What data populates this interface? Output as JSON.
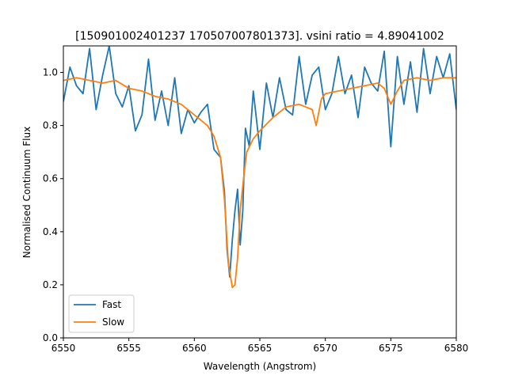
{
  "chart_data": {
    "type": "line",
    "title": "[150901002401237 170507007801373]. vsini ratio = 4.89041002",
    "xlabel": "Wavelength (Angstrom)",
    "ylabel": "Normalised Continuum Flux",
    "xlim": [
      6550,
      6580
    ],
    "ylim": [
      0.0,
      1.1
    ],
    "xticks": [
      6550,
      6555,
      6560,
      6565,
      6570,
      6575,
      6580
    ],
    "xtick_labels": [
      "6550",
      "6555",
      "6560",
      "6565",
      "6570",
      "6575",
      "6580"
    ],
    "yticks": [
      0.0,
      0.2,
      0.4,
      0.6,
      0.8,
      1.0
    ],
    "ytick_labels": [
      "0.0",
      "0.2",
      "0.4",
      "0.6",
      "0.8",
      "1.0"
    ],
    "grid": false,
    "legend_position": "lower-left",
    "series": [
      {
        "name": "Fast",
        "color": "#1f77b4",
        "x": [
          6550.0,
          6550.5,
          6551.0,
          6551.5,
          6552.0,
          6552.5,
          6553.0,
          6553.5,
          6554.0,
          6554.5,
          6555.0,
          6555.5,
          6556.0,
          6556.5,
          6557.0,
          6557.5,
          6558.0,
          6558.5,
          6559.0,
          6559.5,
          6560.0,
          6560.5,
          6561.0,
          6561.5,
          6562.0,
          6562.3,
          6562.5,
          6562.7,
          6562.9,
          6563.1,
          6563.3,
          6563.5,
          6563.7,
          6563.9,
          6564.2,
          6564.5,
          6565.0,
          6565.5,
          6566.0,
          6566.5,
          6567.0,
          6567.5,
          6568.0,
          6568.5,
          6569.0,
          6569.5,
          6570.0,
          6570.5,
          6571.0,
          6571.5,
          6572.0,
          6572.5,
          6573.0,
          6573.5,
          6574.0,
          6574.5,
          6575.0,
          6575.5,
          6576.0,
          6576.5,
          6577.0,
          6577.5,
          6578.0,
          6578.5,
          6579.0,
          6579.5,
          6580.0
        ],
        "y": [
          0.89,
          1.02,
          0.95,
          0.92,
          1.09,
          0.86,
          0.99,
          1.1,
          0.92,
          0.87,
          0.95,
          0.78,
          0.84,
          1.05,
          0.82,
          0.93,
          0.8,
          0.98,
          0.77,
          0.86,
          0.81,
          0.85,
          0.88,
          0.71,
          0.68,
          0.55,
          0.33,
          0.23,
          0.37,
          0.48,
          0.56,
          0.35,
          0.48,
          0.79,
          0.72,
          0.93,
          0.71,
          0.96,
          0.83,
          0.98,
          0.86,
          0.84,
          1.06,
          0.88,
          0.99,
          1.02,
          0.86,
          0.92,
          1.06,
          0.92,
          0.99,
          0.83,
          1.02,
          0.96,
          0.93,
          1.08,
          0.72,
          1.06,
          0.88,
          1.04,
          0.85,
          1.09,
          0.92,
          1.06,
          0.98,
          1.07,
          0.86
        ]
      },
      {
        "name": "Slow",
        "color": "#ff7f0e",
        "x": [
          6550.0,
          6551.0,
          6552.0,
          6553.0,
          6554.0,
          6555.0,
          6556.0,
          6557.0,
          6558.0,
          6559.0,
          6560.0,
          6561.0,
          6561.5,
          6562.0,
          6562.3,
          6562.6,
          6562.9,
          6563.1,
          6563.3,
          6563.5,
          6563.8,
          6564.0,
          6564.5,
          6565.0,
          6566.0,
          6567.0,
          6568.0,
          6569.0,
          6569.3,
          6569.7,
          6570.0,
          6571.0,
          6572.0,
          6573.0,
          6574.0,
          6574.5,
          6575.0,
          6575.5,
          6576.0,
          6577.0,
          6578.0,
          6579.0,
          6580.0
        ],
        "y": [
          0.97,
          0.98,
          0.97,
          0.96,
          0.97,
          0.94,
          0.93,
          0.91,
          0.9,
          0.88,
          0.84,
          0.8,
          0.76,
          0.68,
          0.52,
          0.28,
          0.19,
          0.2,
          0.3,
          0.48,
          0.62,
          0.7,
          0.75,
          0.78,
          0.83,
          0.87,
          0.88,
          0.86,
          0.8,
          0.9,
          0.92,
          0.93,
          0.94,
          0.95,
          0.96,
          0.94,
          0.88,
          0.93,
          0.97,
          0.98,
          0.97,
          0.98,
          0.98
        ]
      }
    ]
  }
}
